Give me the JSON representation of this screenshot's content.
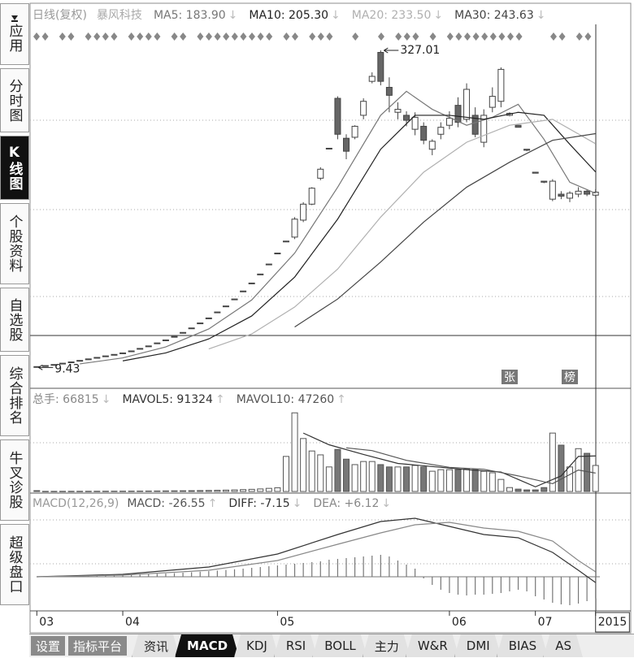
{
  "sidebar": {
    "items": [
      "应用",
      "分时图",
      "K线图",
      "个股资料",
      "自选股",
      "综合排名",
      "牛叉诊股",
      "超级盘口"
    ],
    "active": 2
  },
  "bottom_bar": {
    "buttons": [
      "设置",
      "指标平台"
    ],
    "tabs": [
      "资讯",
      "MACD",
      "KDJ",
      "RSI",
      "BOLL",
      "主力",
      "W&R",
      "DMI",
      "BIAS",
      "AS"
    ],
    "active_tab": 1
  },
  "chart_data": [
    {
      "type": "candlestick",
      "title": "日线(复权)",
      "subtitle": "暴风科技",
      "xlim": [
        -0.5,
        65.5
      ],
      "ylim": [
        -9,
        349
      ],
      "open": [
        9.6,
        11.3,
        12.4,
        13.7,
        15,
        16.5,
        18,
        19.5,
        21,
        22.5,
        24,
        26,
        28.5,
        31,
        34,
        37,
        40.5,
        44.5,
        49,
        54,
        59,
        65,
        71,
        78,
        86,
        94,
        103,
        113,
        124,
        136,
        140,
        157,
        173,
        199,
        229,
        279,
        239,
        240,
        262,
        296,
        325,
        290,
        265,
        262,
        248,
        251,
        228,
        243,
        252,
        272,
        258,
        262,
        235,
        270,
        276,
        262,
        252,
        228,
        205,
        196,
        178,
        183,
        179,
        183,
        186,
        182
      ],
      "high": [
        10.4,
        11.3,
        12.4,
        13.7,
        15,
        16.5,
        18,
        19.5,
        21,
        22.5,
        24,
        26,
        28.5,
        31,
        34,
        37,
        40.5,
        44.5,
        49,
        54,
        59,
        65,
        71,
        78,
        86,
        94,
        103,
        113,
        124,
        136,
        160,
        175,
        190,
        210,
        229,
        281,
        243,
        252,
        279,
        305,
        327.01,
        300,
        275,
        266,
        265,
        255,
        238,
        255,
        266,
        280,
        294,
        270,
        268,
        290,
        310,
        265,
        252,
        228,
        205,
        196,
        198,
        186,
        186,
        190,
        188,
        188
      ],
      "low": [
        9.43,
        11.3,
        12.4,
        13.7,
        15,
        16.5,
        18,
        19.5,
        21,
        22.5,
        24,
        26,
        28.5,
        31,
        34,
        37,
        40.5,
        44.5,
        49,
        54,
        59,
        65,
        71,
        78,
        86,
        94,
        103,
        113,
        124,
        136,
        138,
        155,
        172,
        197,
        229,
        238,
        218,
        238,
        258,
        294,
        292,
        265,
        258,
        251,
        242,
        233,
        222,
        238,
        248,
        250,
        255,
        240,
        230,
        265,
        270,
        261,
        250,
        226,
        204,
        194,
        176,
        178,
        175,
        180,
        181,
        180
      ],
      "close": [
        10.3,
        11.3,
        12.4,
        13.7,
        15,
        16.5,
        18,
        19.5,
        21,
        22.5,
        24,
        26,
        28.5,
        31,
        34,
        37,
        40.5,
        44.5,
        49,
        54,
        59,
        65,
        71,
        78,
        86,
        94,
        103,
        113,
        124,
        136,
        158,
        173,
        189,
        208,
        229,
        243,
        226,
        251,
        276,
        301,
        296,
        282,
        268,
        257,
        260,
        237,
        236,
        250,
        259,
        255,
        288,
        243,
        262,
        281,
        308,
        264,
        250,
        227,
        204,
        195,
        196,
        181,
        184,
        186,
        183,
        185
      ],
      "series": [
        {
          "name": "MA5",
          "legend": "MA5: 183.90",
          "trend": "↓",
          "color": "#777777",
          "x": [
            5,
            10,
            15,
            20,
            25,
            30,
            35,
            40,
            43,
            46,
            50,
            53,
            56,
            59,
            62,
            65
          ],
          "values": [
            13,
            19,
            30,
            48,
            77,
            124,
            190,
            262,
            286,
            268,
            252,
            260,
            273,
            238,
            195,
            183.9
          ]
        },
        {
          "name": "MA10",
          "legend": "MA10: 205.30",
          "trend": "↓",
          "color": "#222222",
          "x": [
            10,
            15,
            20,
            25,
            30,
            35,
            40,
            44,
            48,
            52,
            56,
            59,
            62,
            65
          ],
          "values": [
            16,
            24,
            38,
            61,
            100,
            158,
            228,
            262,
            262,
            258,
            265,
            262,
            233,
            205.3
          ]
        },
        {
          "name": "MA20",
          "legend": "MA20: 233.50",
          "trend": "↓",
          "color": "#b0b0b0",
          "x": [
            20,
            25,
            30,
            35,
            40,
            45,
            50,
            55,
            60,
            65
          ],
          "values": [
            28,
            43,
            70,
            108,
            160,
            205,
            235,
            252,
            258,
            233.5
          ]
        },
        {
          "name": "MA30",
          "legend": "MA30: 243.63",
          "trend": "↓",
          "color": "#444444",
          "x": [
            30,
            35,
            40,
            45,
            50,
            55,
            60,
            65
          ],
          "values": [
            50,
            78,
            115,
            155,
            190,
            215,
            237,
            243.63
          ]
        }
      ],
      "markers": [
        {
          "x": 55,
          "label": "张"
        },
        {
          "x": 62,
          "label": "榜"
        }
      ]
    },
    {
      "type": "bar",
      "label": "总手: 66815",
      "trend": "↓",
      "xlim": [
        -0.5,
        65.5
      ],
      "ylim": [
        0,
        240000
      ],
      "values": [
        2100,
        300,
        350,
        400,
        450,
        500,
        550,
        600,
        700,
        750,
        800,
        900,
        1000,
        1100,
        1200,
        1400,
        1600,
        1800,
        2000,
        2300,
        2600,
        3000,
        3500,
        4000,
        4800,
        5500,
        6500,
        8000,
        9500,
        90000,
        202000,
        136000,
        104000,
        94000,
        63000,
        108000,
        83000,
        69000,
        77000,
        77000,
        69000,
        63000,
        63000,
        63000,
        67000,
        63000,
        52000,
        56000,
        56000,
        56000,
        58000,
        56000,
        52000,
        48000,
        31000,
        10000,
        6000,
        4000,
        4000,
        10000,
        150000,
        119000,
        63000,
        110000,
        98000,
        66815
      ],
      "series": [
        {
          "name": "MAVOL5",
          "legend": "MAVOL5: 91324",
          "trend": "↑",
          "color": "#333333",
          "x": [
            31,
            34,
            38,
            42,
            46,
            50,
            54,
            58,
            61,
            63,
            65
          ],
          "values": [
            150000,
            120000,
            95000,
            72000,
            64000,
            56000,
            50000,
            12000,
            40000,
            90000,
            91324
          ]
        },
        {
          "name": "MAVOL10",
          "legend": "MAVOL10: 47260",
          "trend": "↑",
          "color": "#555555",
          "x": [
            36,
            39,
            43,
            48,
            52,
            56,
            60,
            63,
            65
          ],
          "values": [
            112000,
            105000,
            80000,
            62000,
            57000,
            40000,
            20000,
            55000,
            47260
          ]
        }
      ]
    },
    {
      "type": "macd",
      "title": "MACD(12,26,9)",
      "label": "MACD: -26.55",
      "trend": "↑",
      "xlim": [
        -0.5,
        65.5
      ],
      "ylim": [
        -40,
        80
      ],
      "xticks": [
        {
          "value": 0,
          "label": "03"
        },
        {
          "value": 10,
          "label": "04"
        },
        {
          "value": 28,
          "label": "05"
        },
        {
          "value": 48,
          "label": "06"
        },
        {
          "value": 58,
          "label": "07"
        },
        {
          "value": 65,
          "label": "2015"
        }
      ],
      "values": [
        0,
        0.2,
        0.4,
        0.6,
        0.8,
        1,
        1.2,
        1.4,
        1.6,
        1.9,
        2.2,
        2.5,
        2.8,
        3.2,
        3.6,
        4,
        4.5,
        5,
        5.6,
        6.2,
        6.9,
        7.6,
        8.4,
        9.2,
        10,
        11,
        12,
        13,
        14,
        15,
        16,
        17,
        18,
        19,
        21,
        22,
        23,
        24,
        25,
        26,
        27,
        25,
        20,
        15,
        10,
        -2,
        -10,
        -16,
        -20,
        -22,
        -23,
        -22,
        -22,
        -21,
        -20,
        -18,
        -16,
        -18,
        -24,
        -28,
        -32,
        -34,
        -35,
        -33,
        -30,
        -26.55
      ],
      "series": [
        {
          "name": "DIFF",
          "legend": "DIFF: -7.15",
          "trend": "↓",
          "color": "#333333",
          "x": [
            0,
            10,
            20,
            28,
            35,
            40,
            44,
            48,
            52,
            56,
            60,
            63,
            65
          ],
          "values": [
            0,
            3,
            12,
            28,
            52,
            68,
            72,
            62,
            52,
            48,
            30,
            8,
            -7.15
          ]
        },
        {
          "name": "DEA",
          "legend": "DEA: +6.12",
          "trend": "↓",
          "color": "#888888",
          "x": [
            0,
            10,
            20,
            28,
            35,
            40,
            44,
            48,
            52,
            56,
            60,
            63,
            65
          ],
          "values": [
            0,
            2,
            8,
            20,
            40,
            54,
            64,
            67,
            60,
            56,
            44,
            20,
            6.12
          ]
        }
      ]
    }
  ]
}
